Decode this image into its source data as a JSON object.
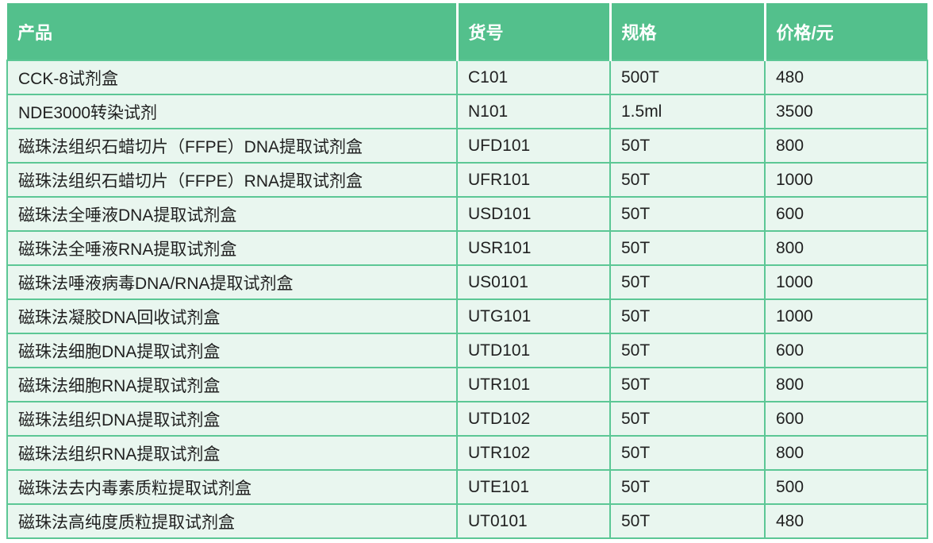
{
  "colors": {
    "page_bg": "#FFFFFF",
    "header_bg": "#53C08C",
    "header_text": "#FFFFFF",
    "border_green": "#5CC795",
    "row_bg": "#E9F6EF",
    "body_text": "#212121",
    "header_divider": "#FFFFFF"
  },
  "table": {
    "columns": [
      {
        "key": "product",
        "label": "产品"
      },
      {
        "key": "catalog_no",
        "label": "货号"
      },
      {
        "key": "spec",
        "label": "规格"
      },
      {
        "key": "price",
        "label": "价格/元"
      }
    ],
    "rows": [
      [
        "CCK-8试剂盒",
        "C101",
        "500T",
        "480"
      ],
      [
        "NDE3000转染试剂",
        "N101",
        "1.5ml",
        "3500"
      ],
      [
        "磁珠法组织石蜡切片（FFPE）DNA提取试剂盒",
        "UFD101",
        "50T",
        "800"
      ],
      [
        "磁珠法组织石蜡切片（FFPE）RNA提取试剂盒",
        "UFR101",
        "50T",
        "1000"
      ],
      [
        "磁珠法全唾液DNA提取试剂盒",
        "USD101",
        "50T",
        "600"
      ],
      [
        "磁珠法全唾液RNA提取试剂盒",
        "USR101",
        "50T",
        "800"
      ],
      [
        "磁珠法唾液病毒DNA/RNA提取试剂盒",
        "US0101",
        "50T",
        "1000"
      ],
      [
        "磁珠法凝胶DNA回收试剂盒",
        "UTG101",
        "50T",
        "1000"
      ],
      [
        "磁珠法细胞DNA提取试剂盒",
        "UTD101",
        "50T",
        "600"
      ],
      [
        "磁珠法细胞RNA提取试剂盒",
        "UTR101",
        "50T",
        "800"
      ],
      [
        "磁珠法组织DNA提取试剂盒",
        "UTD102",
        "50T",
        "600"
      ],
      [
        "磁珠法组织RNA提取试剂盒",
        "UTR102",
        "50T",
        "800"
      ],
      [
        "磁珠法去内毒素质粒提取试剂盒",
        "UTE101",
        "50T",
        "500"
      ],
      [
        "磁珠法高纯度质粒提取试剂盒",
        "UT0101",
        "50T",
        "480"
      ]
    ]
  }
}
